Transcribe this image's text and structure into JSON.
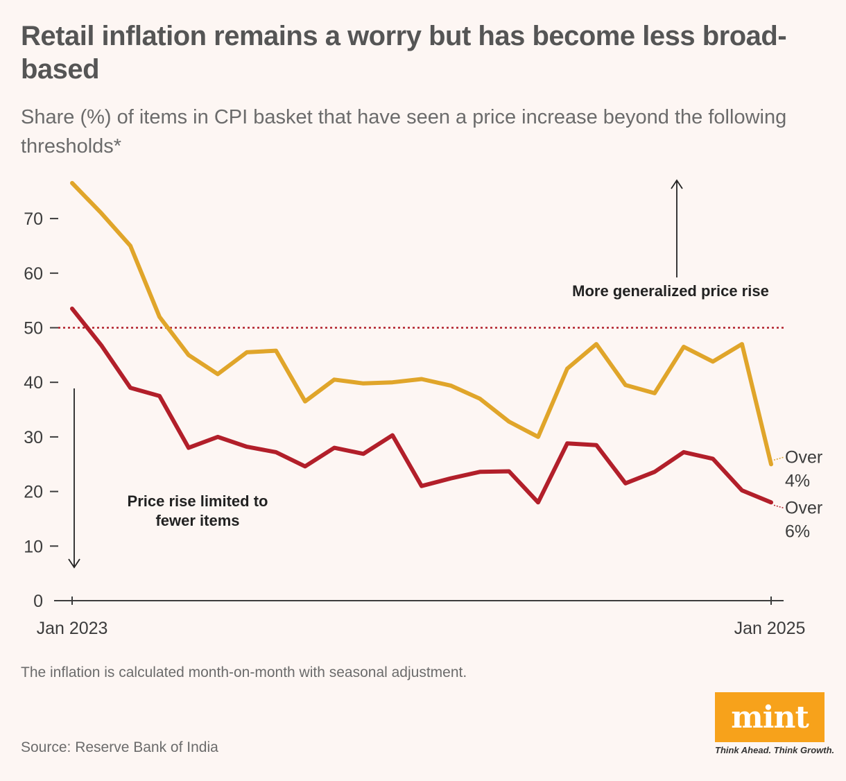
{
  "header": {
    "title": "Retail inflation remains a worry but has become less broad-based",
    "subtitle": "Share (%) of items in CPI basket that have seen a price increase beyond the following thresholds*"
  },
  "chart_data": {
    "type": "line",
    "title": "Retail inflation remains a worry but has become less broad-based",
    "ylabel": "Share (%) of items in CPI basket",
    "ylim": [
      0,
      75
    ],
    "yticks": [
      0,
      10,
      20,
      30,
      40,
      50,
      60,
      70
    ],
    "x_start_label": "Jan 2023",
    "x_end_label": "Jan 2025",
    "x_count": 25,
    "reference_line": {
      "value": 50,
      "style": "dotted"
    },
    "series": [
      {
        "name": "Over 4%",
        "label_lines": [
          "Over",
          "4%"
        ],
        "color": "#e0a52a",
        "values": [
          76.5,
          71,
          65,
          52,
          45,
          41.5,
          45.5,
          45.8,
          36.5,
          40.5,
          39.8,
          40,
          40.6,
          39.4,
          37,
          32.8,
          30,
          42.5,
          47,
          39.5,
          38,
          46.5,
          43.8,
          47,
          25
        ]
      },
      {
        "name": "Over 6%",
        "label_lines": [
          "Over",
          "6%"
        ],
        "color": "#b21f2a",
        "values": [
          53.5,
          46.8,
          39,
          37.5,
          28,
          30,
          28.2,
          27.2,
          24.6,
          28,
          26.9,
          30.3,
          21,
          22.4,
          23.6,
          23.7,
          18,
          28.8,
          28.5,
          21.5,
          23.6,
          27.2,
          26,
          20.2,
          18
        ]
      }
    ],
    "annotations": {
      "upper": "More generalized price rise",
      "lower_line1": "Price rise limited to",
      "lower_line2": "fewer items"
    }
  },
  "footer": {
    "note": "The inflation is calculated month-on-month with seasonal adjustment.",
    "source": "Source: Reserve Bank of India",
    "logo_text": "mint",
    "tagline": "Think Ahead. Think Growth."
  },
  "colors": {
    "background": "#fdf6f3",
    "over4": "#e0a52a",
    "over6": "#b21f2a",
    "reference": "#b21f2a"
  }
}
